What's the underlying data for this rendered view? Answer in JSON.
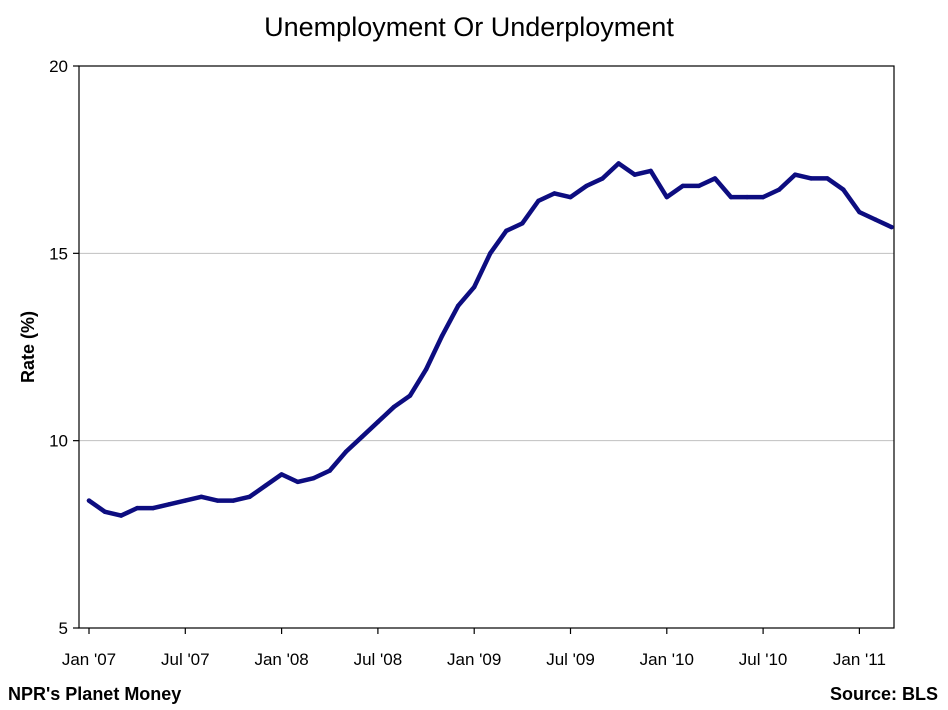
{
  "colors": {
    "series_line": "#0d0d80",
    "gridline": "#c0c0c0",
    "axis": "#000000",
    "background": "#ffffff"
  },
  "chart_data": {
    "type": "line",
    "title": "Unemployment Or Underployment",
    "xlabel": "",
    "ylabel": "Rate (%)",
    "ylim": [
      5,
      20
    ],
    "yticks": [
      "5",
      "10",
      "15",
      "20"
    ],
    "xticks": [
      {
        "label": "Jan '07",
        "index": 0
      },
      {
        "label": "Jul '07",
        "index": 6
      },
      {
        "label": "Jan '08",
        "index": 12
      },
      {
        "label": "Jul '08",
        "index": 18
      },
      {
        "label": "Jan '09",
        "index": 24
      },
      {
        "label": "Jul '09",
        "index": 30
      },
      {
        "label": "Jan '10",
        "index": 36
      },
      {
        "label": "Jul '10",
        "index": 42
      },
      {
        "label": "Jan '11",
        "index": 48
      }
    ],
    "x_range": [
      0,
      50.5
    ],
    "grid": "horizontal",
    "legend": "none",
    "series": [
      {
        "name": "",
        "values": [
          8.4,
          8.1,
          8.0,
          8.2,
          8.2,
          8.3,
          8.4,
          8.5,
          8.4,
          8.4,
          8.5,
          8.8,
          9.1,
          8.9,
          9.0,
          9.2,
          9.7,
          10.1,
          10.5,
          10.9,
          11.2,
          11.9,
          12.8,
          13.6,
          14.1,
          15.0,
          15.6,
          15.8,
          16.4,
          16.6,
          16.5,
          16.8,
          17.0,
          17.4,
          17.1,
          17.2,
          16.5,
          16.8,
          16.8,
          17.0,
          16.5,
          16.5,
          16.5,
          16.7,
          17.1,
          17.0,
          17.0,
          16.7,
          16.1,
          15.9,
          15.7
        ]
      }
    ]
  },
  "footer": {
    "left": "NPR's Planet Money",
    "right": "Source: BLS"
  }
}
